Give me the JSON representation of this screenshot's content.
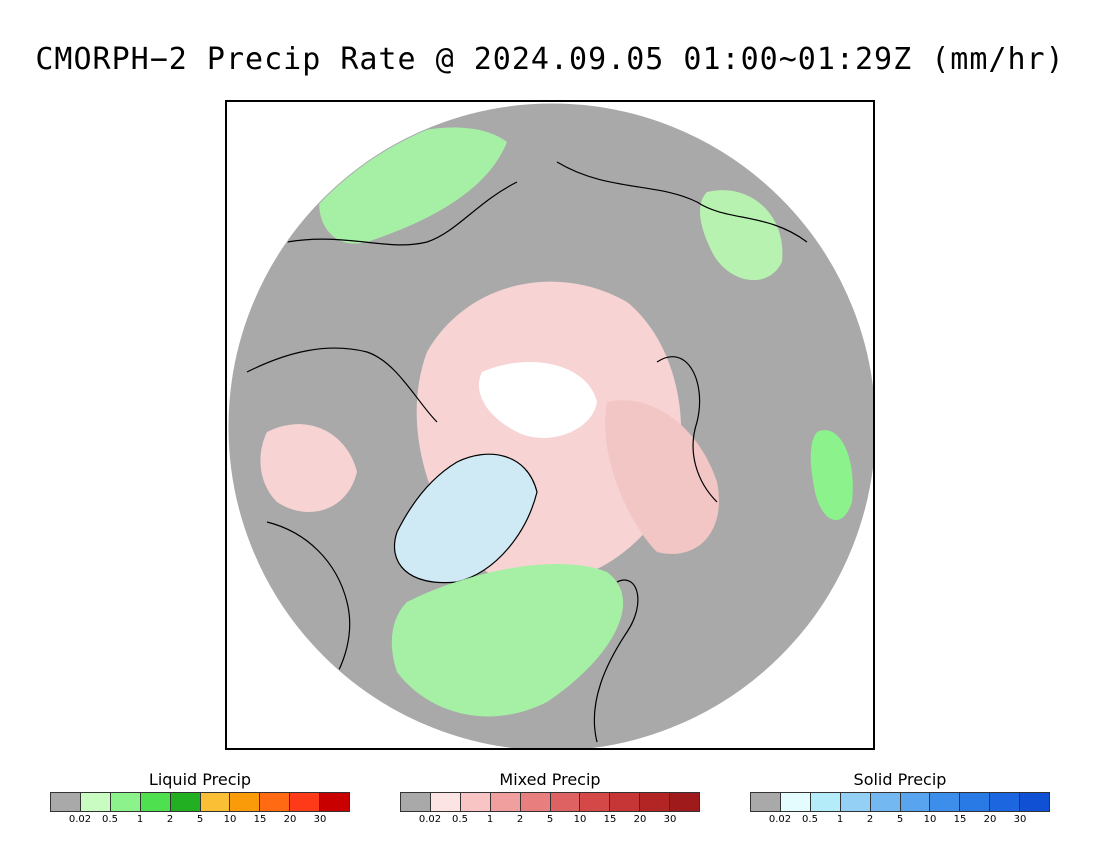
{
  "title": "CMORPH−2 Precip Rate @ 2024.09.05 01:00~01:29Z (mm/hr)",
  "map": {
    "projection": "polar stereographic (north pole)",
    "background_color": "#a9a9a9",
    "coastline_color": "#000000",
    "features": [
      {
        "name": "greenland-ice-sheet",
        "color": "#cfe9f5"
      },
      {
        "name": "arctic-mixed-precip",
        "color": "#f7d3d3"
      },
      {
        "name": "north-atlantic-liquid",
        "color": "#a6f0a6"
      },
      {
        "name": "polar-solid-precip",
        "color": "#ffffff"
      }
    ]
  },
  "legends": [
    {
      "name": "liquid",
      "title": "Liquid Precip",
      "colors": [
        "#a9a9a9",
        "#c8fcc0",
        "#8cf28c",
        "#4ee04e",
        "#22b022",
        "#fbbf36",
        "#fa9c0a",
        "#ff6a12",
        "#ff3a18",
        "#c80000"
      ],
      "ticks": [
        "0.02",
        "0.5",
        "1",
        "2",
        "5",
        "10",
        "15",
        "20",
        "30"
      ]
    },
    {
      "name": "mixed",
      "title": "Mixed Precip",
      "colors": [
        "#a9a9a9",
        "#fde4e4",
        "#f9c4c4",
        "#f19e9e",
        "#e87e7e",
        "#de6262",
        "#d44848",
        "#c63636",
        "#b32525",
        "#9f1a1a"
      ],
      "ticks": [
        "0.02",
        "0.5",
        "1",
        "2",
        "5",
        "10",
        "15",
        "20",
        "30"
      ]
    },
    {
      "name": "solid",
      "title": "Solid Precip",
      "colors": [
        "#a9a9a9",
        "#e4fcfe",
        "#b4ecfa",
        "#94d0f6",
        "#74b8f2",
        "#58a4ee",
        "#3c8eea",
        "#2a7ae6",
        "#1c66e0",
        "#1050d4"
      ],
      "ticks": [
        "0.02",
        "0.5",
        "1",
        "2",
        "5",
        "10",
        "15",
        "20",
        "30"
      ]
    }
  ]
}
